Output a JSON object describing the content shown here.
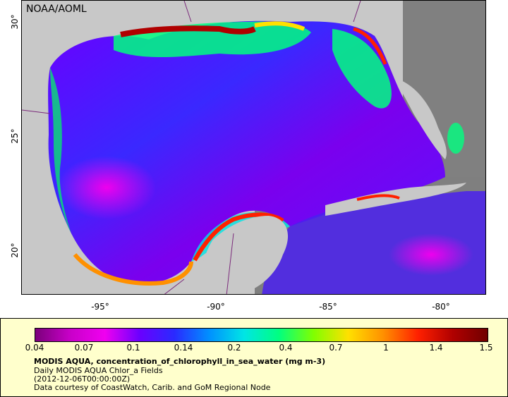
{
  "map": {
    "agency": "NOAA/AOML",
    "x_ticks": [
      "-95°",
      "-90°",
      "-85°",
      "-80°"
    ],
    "y_ticks": [
      "30°",
      "25°",
      "20°"
    ]
  },
  "colorbar": {
    "labels": [
      "0.04",
      "0.07",
      "0.1",
      "0.14",
      "0.2",
      "0.4",
      "0.7",
      "1",
      "1.4",
      "1.5"
    ],
    "colors": [
      "#7b007b",
      "#c800c8",
      "#f000f0",
      "#6a00ff",
      "#2a2aff",
      "#0090ff",
      "#00e5e5",
      "#00ff80",
      "#80ff00",
      "#ffe000",
      "#ff9000",
      "#ff2000",
      "#b00000",
      "#700000"
    ]
  },
  "info": {
    "title": "MODIS AQUA, concentration_of_chlorophyll_in_sea_water (mg m-3)",
    "subtitle": "Daily MODIS AQUA Chlor_a Fields",
    "time": "(2012-12-06T00:00:00Z)",
    "credit": "Data courtesy of CoastWatch, Carib. and GoM Regional Node"
  }
}
